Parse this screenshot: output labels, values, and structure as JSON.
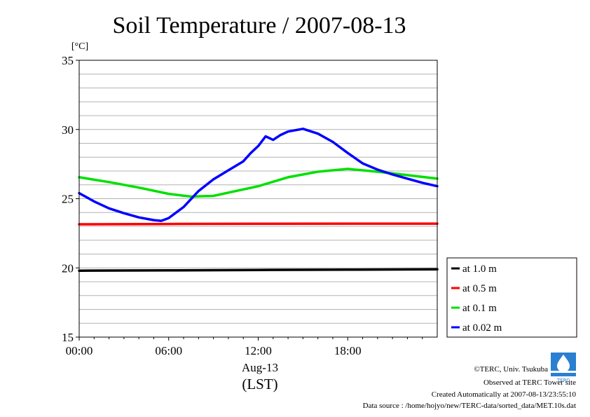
{
  "chart_data": {
    "type": "line",
    "title": "Soil Temperature / 2007-08-13",
    "ylabel": "[°C]",
    "xlabel_date": "Aug-13",
    "xlabel_tz": "(LST)",
    "ylim": [
      15,
      35
    ],
    "yticks": [
      15,
      20,
      25,
      30,
      35
    ],
    "xlim": [
      "00:00",
      "24:00"
    ],
    "xticks": [
      "00:00",
      "06:00",
      "12:00",
      "18:00"
    ],
    "grid": true,
    "legend_position": "right",
    "series": [
      {
        "name": "at 1.0 m",
        "color": "#000000",
        "x": [
          "00:00",
          "06:00",
          "12:00",
          "18:00",
          "24:00"
        ],
        "y": [
          19.8,
          19.82,
          19.85,
          19.87,
          19.9
        ]
      },
      {
        "name": "at 0.5 m",
        "color": "#ff0000",
        "x": [
          "00:00",
          "06:00",
          "12:00",
          "18:00",
          "24:00"
        ],
        "y": [
          23.15,
          23.17,
          23.19,
          23.2,
          23.2
        ]
      },
      {
        "name": "at 0.1 m",
        "color": "#00e000",
        "x": [
          "00:00",
          "02:00",
          "04:00",
          "06:00",
          "07:30",
          "09:00",
          "10:30",
          "12:00",
          "14:00",
          "16:00",
          "18:00",
          "20:00",
          "22:00",
          "24:00"
        ],
        "y": [
          26.55,
          26.2,
          25.8,
          25.35,
          25.15,
          25.2,
          25.55,
          25.9,
          26.55,
          26.95,
          27.15,
          26.95,
          26.7,
          26.45
        ]
      },
      {
        "name": "at 0.02 m",
        "color": "#0000ff",
        "x": [
          "00:00",
          "01:00",
          "02:00",
          "03:00",
          "04:00",
          "05:00",
          "05:30",
          "06:00",
          "07:00",
          "08:00",
          "09:00",
          "10:00",
          "11:00",
          "11:30",
          "12:00",
          "12:30",
          "13:00",
          "13:30",
          "14:00",
          "15:00",
          "16:00",
          "17:00",
          "18:00",
          "19:00",
          "20:00",
          "21:00",
          "22:00",
          "23:00",
          "24:00"
        ],
        "y": [
          25.4,
          24.8,
          24.3,
          23.95,
          23.65,
          23.45,
          23.4,
          23.6,
          24.4,
          25.55,
          26.4,
          27.05,
          27.7,
          28.3,
          28.8,
          29.5,
          29.25,
          29.6,
          29.85,
          30.05,
          29.7,
          29.1,
          28.3,
          27.55,
          27.1,
          26.75,
          26.45,
          26.15,
          25.9
        ]
      }
    ]
  },
  "footer": {
    "copyright": "©TERC, Univ. Tsukuba",
    "site": "Observed at TERC Tower site",
    "created": "Created Automatically at 2007-08-13/23:55:10",
    "source": "Data source : /home/hojyo/new/TERC-data/sorted_data/MET.10s.dat",
    "logo_text": "TERC"
  }
}
